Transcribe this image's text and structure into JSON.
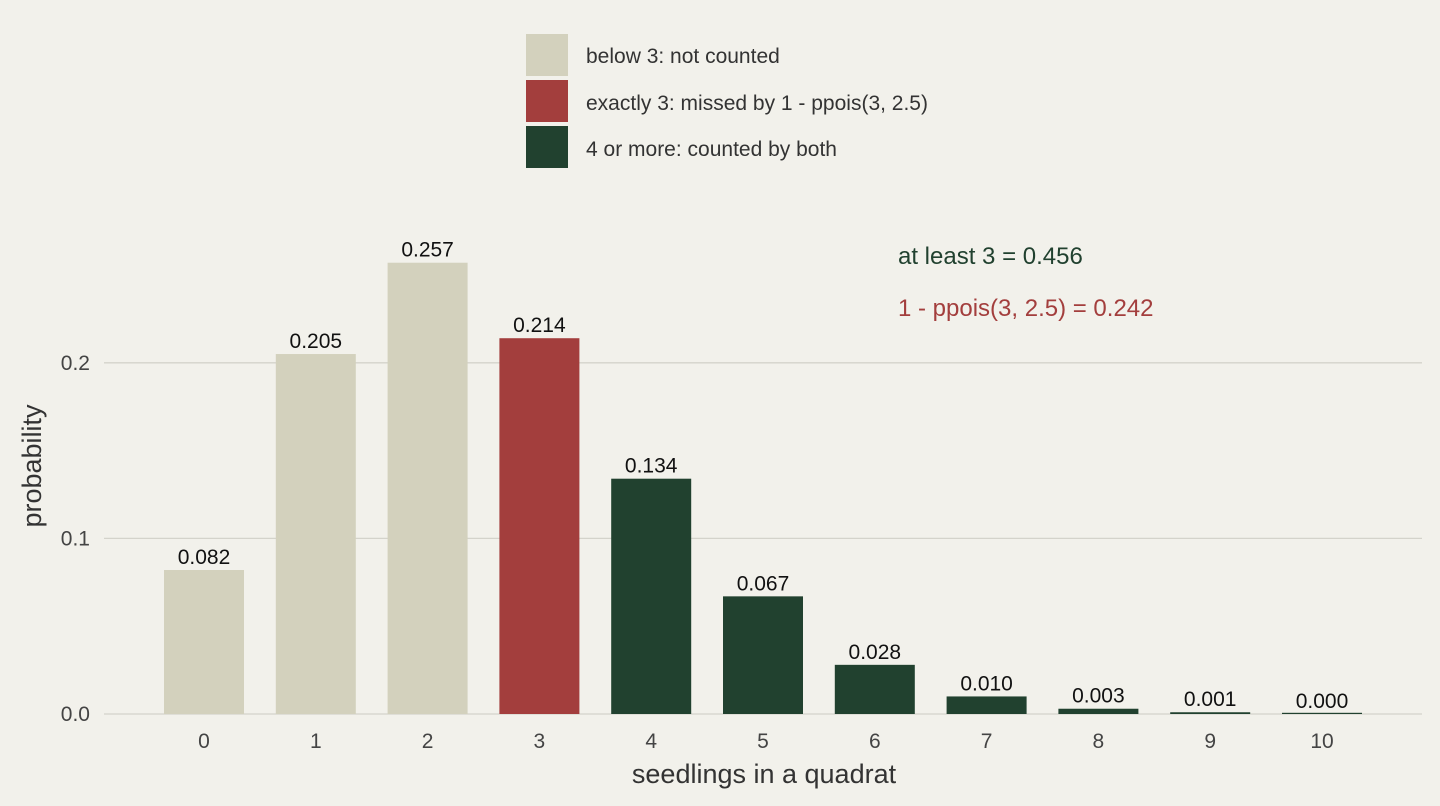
{
  "chart_data": {
    "type": "bar",
    "categories": [
      "0",
      "1",
      "2",
      "3",
      "4",
      "5",
      "6",
      "7",
      "8",
      "9",
      "10"
    ],
    "values": [
      0.082,
      0.205,
      0.257,
      0.214,
      0.134,
      0.067,
      0.028,
      0.01,
      0.003,
      0.001,
      0.0
    ],
    "value_labels": [
      "0.082",
      "0.205",
      "0.257",
      "0.214",
      "0.134",
      "0.067",
      "0.028",
      "0.010",
      "0.003",
      "0.001",
      "0.000"
    ],
    "groups": [
      0,
      0,
      0,
      1,
      2,
      2,
      2,
      2,
      2,
      2,
      2
    ],
    "legend": [
      {
        "label": "below 3: not counted",
        "color": "#d3d1bd"
      },
      {
        "label": "exactly 3: missed by 1 - ppois(3, 2.5)",
        "color": "#a33e3d"
      },
      {
        "label": "4 or more: counted by both",
        "color": "#21412f"
      }
    ],
    "legend_position": "top",
    "xlabel": "seedlings in a quadrat",
    "ylabel": "probability",
    "yticks": [
      "0.0",
      "0.1",
      "0.2"
    ],
    "ytick_values": [
      0.0,
      0.1,
      0.2
    ],
    "ylim": [
      0,
      0.257
    ],
    "grid": "horizontal",
    "annotations": [
      {
        "text": "at least 3 = 0.456",
        "color": "#21412f"
      },
      {
        "text": "1 - ppois(3, 2.5) = 0.242",
        "color": "#a33e3d"
      }
    ]
  }
}
